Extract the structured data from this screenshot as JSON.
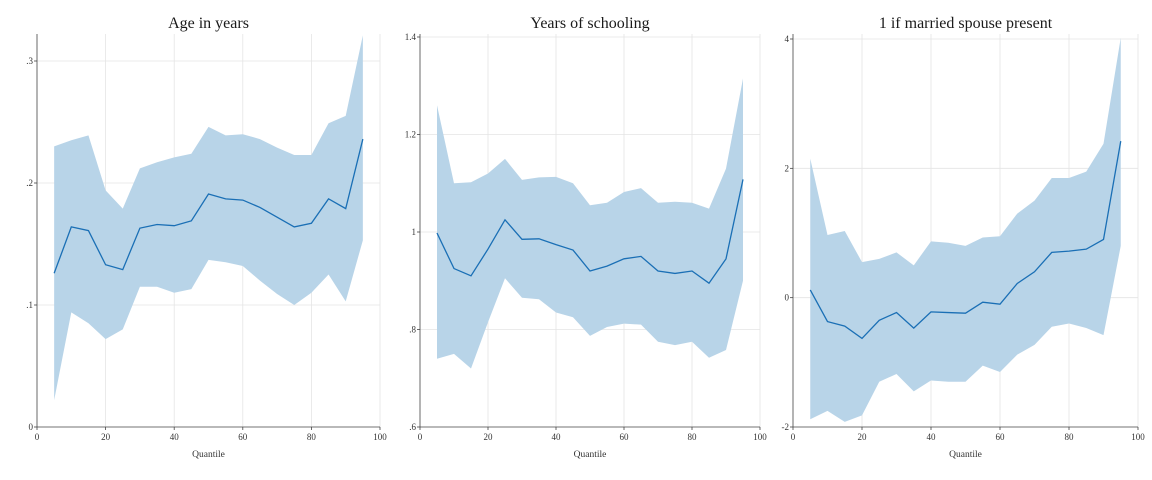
{
  "chart_data": [
    {
      "type": "line",
      "title": "Age in years",
      "xlabel": "Quantile",
      "ylabel": "",
      "xlim": [
        0,
        100
      ],
      "ylim": [
        0,
        0.33
      ],
      "xticks": [
        0,
        20,
        40,
        60,
        80,
        100
      ],
      "xtick_labels": [
        "0",
        "20",
        "40",
        "60",
        "80",
        "100"
      ],
      "yticks": [
        0,
        0.1,
        0.2,
        0.3
      ],
      "ytick_labels": [
        "0",
        ".1",
        ".2",
        ".3"
      ],
      "grid": true,
      "x": [
        5,
        10,
        15,
        20,
        25,
        30,
        35,
        40,
        45,
        50,
        55,
        60,
        65,
        70,
        75,
        80,
        85,
        90,
        95
      ],
      "series": [
        {
          "role": "estimate",
          "color": "#1a6fb5",
          "values": [
            0.126,
            0.164,
            0.161,
            0.133,
            0.129,
            0.163,
            0.166,
            0.165,
            0.169,
            0.191,
            0.187,
            0.186,
            0.18,
            0.172,
            0.164,
            0.167,
            0.187,
            0.179,
            0.236
          ]
        },
        {
          "role": "confidence-band",
          "color": "#b8d4e8",
          "lower": [
            0.022,
            0.094,
            0.085,
            0.072,
            0.08,
            0.115,
            0.115,
            0.11,
            0.113,
            0.137,
            0.135,
            0.132,
            0.12,
            0.109,
            0.1,
            0.11,
            0.125,
            0.103,
            0.153
          ],
          "upper": [
            0.23,
            0.235,
            0.239,
            0.194,
            0.179,
            0.212,
            0.217,
            0.221,
            0.224,
            0.246,
            0.239,
            0.24,
            0.236,
            0.229,
            0.223,
            0.223,
            0.249,
            0.255,
            0.321
          ]
        }
      ]
    },
    {
      "type": "line",
      "title": "Years of schooling",
      "xlabel": "Quantile",
      "ylabel": "",
      "xlim": [
        0,
        100
      ],
      "ylim": [
        0.6,
        1.4
      ],
      "xticks": [
        0,
        20,
        40,
        60,
        80,
        100
      ],
      "xtick_labels": [
        "0",
        "20",
        "40",
        "60",
        "80",
        "100"
      ],
      "yticks": [
        0.6,
        0.8,
        1.0,
        1.2,
        1.4
      ],
      "ytick_labels": [
        ".6",
        ".8",
        "1",
        "1.2",
        "1.4"
      ],
      "grid": true,
      "x": [
        5,
        10,
        15,
        20,
        25,
        30,
        35,
        40,
        45,
        50,
        55,
        60,
        65,
        70,
        75,
        80,
        85,
        90,
        95
      ],
      "series": [
        {
          "role": "estimate",
          "color": "#1a6fb5",
          "values": [
            0.998,
            0.925,
            0.91,
            0.965,
            1.025,
            0.985,
            0.986,
            0.974,
            0.963,
            0.92,
            0.93,
            0.945,
            0.95,
            0.92,
            0.915,
            0.92,
            0.895,
            0.945,
            1.108
          ]
        },
        {
          "role": "confidence-band",
          "color": "#b8d4e8",
          "lower": [
            0.74,
            0.75,
            0.72,
            0.815,
            0.905,
            0.865,
            0.862,
            0.835,
            0.825,
            0.787,
            0.805,
            0.812,
            0.81,
            0.775,
            0.768,
            0.775,
            0.742,
            0.758,
            0.9
          ],
          "upper": [
            1.26,
            1.1,
            1.102,
            1.12,
            1.15,
            1.107,
            1.112,
            1.113,
            1.1,
            1.055,
            1.06,
            1.082,
            1.09,
            1.06,
            1.062,
            1.06,
            1.048,
            1.13,
            1.315
          ]
        }
      ]
    },
    {
      "type": "line",
      "title": "1 if married spouse present",
      "xlabel": "Quantile",
      "ylabel": "",
      "xlim": [
        0,
        100
      ],
      "ylim": [
        -2,
        4
      ],
      "xticks": [
        0,
        20,
        40,
        60,
        80,
        100
      ],
      "xtick_labels": [
        "0",
        "20",
        "40",
        "60",
        "80",
        "100"
      ],
      "yticks": [
        -2,
        0,
        2,
        4
      ],
      "ytick_labels": [
        "-2",
        "0",
        "2",
        "4"
      ],
      "grid": true,
      "x": [
        5,
        10,
        15,
        20,
        25,
        30,
        35,
        40,
        45,
        50,
        55,
        60,
        65,
        70,
        75,
        80,
        85,
        90,
        95
      ],
      "series": [
        {
          "role": "estimate",
          "color": "#1a6fb5",
          "values": [
            0.12,
            -0.37,
            -0.44,
            -0.63,
            -0.35,
            -0.23,
            -0.47,
            -0.22,
            -0.23,
            -0.24,
            -0.07,
            -0.1,
            0.22,
            0.4,
            0.7,
            0.72,
            0.75,
            0.9,
            2.42
          ]
        },
        {
          "role": "confidence-band",
          "color": "#b8d4e8",
          "lower": [
            -1.88,
            -1.75,
            -1.92,
            -1.82,
            -1.3,
            -1.18,
            -1.45,
            -1.28,
            -1.3,
            -1.3,
            -1.05,
            -1.15,
            -0.88,
            -0.73,
            -0.45,
            -0.4,
            -0.47,
            -0.58,
            0.8
          ],
          "upper": [
            2.15,
            0.97,
            1.03,
            0.55,
            0.6,
            0.7,
            0.5,
            0.87,
            0.85,
            0.8,
            0.93,
            0.95,
            1.3,
            1.5,
            1.85,
            1.85,
            1.95,
            2.38,
            4.02
          ]
        }
      ]
    }
  ]
}
